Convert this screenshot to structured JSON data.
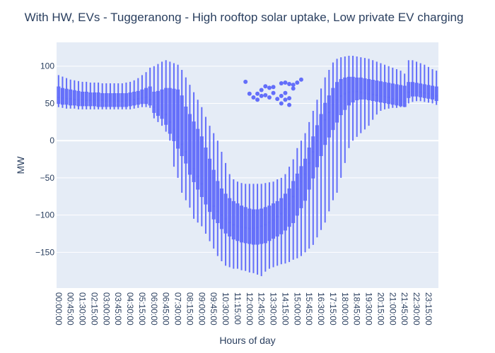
{
  "chart_data": {
    "type": "box",
    "title": "With HW, EVs - Tuggeranong - High rooftop solar uptake, Low private EV charging",
    "xlabel": "Hours of day",
    "ylabel": "MW",
    "ylim": [
      -198,
      132
    ],
    "yticks": [
      100,
      50,
      0,
      -50,
      -100,
      -150
    ],
    "ytick_labels": [
      "100",
      "50",
      "0",
      "−50",
      "−100",
      "−150"
    ],
    "xtick_labels": [
      "00:00:00",
      "00:45:00",
      "01:30:00",
      "02:15:00",
      "03:00:00",
      "03:45:00",
      "04:30:00",
      "05:15:00",
      "06:00:00",
      "06:45:00",
      "07:30:00",
      "08:15:00",
      "09:00:00",
      "09:45:00",
      "10:30:00",
      "11:15:00",
      "12:00:00",
      "12:45:00",
      "13:30:00",
      "14:15:00",
      "15:00:00",
      "15:45:00",
      "16:30:00",
      "17:15:00",
      "18:00:00",
      "18:45:00",
      "19:30:00",
      "20:15:00",
      "21:00:00",
      "21:45:00",
      "22:30:00",
      "23:15:00"
    ],
    "colors": {
      "box": "#636efa",
      "plot_bg": "#e5ecf6",
      "grid": "#ffffff"
    },
    "categories": [
      "00:00",
      "00:15",
      "00:30",
      "00:45",
      "01:00",
      "01:15",
      "01:30",
      "01:45",
      "02:00",
      "02:15",
      "02:30",
      "02:45",
      "03:00",
      "03:15",
      "03:30",
      "03:45",
      "04:00",
      "04:15",
      "04:30",
      "04:45",
      "05:00",
      "05:15",
      "05:30",
      "05:45",
      "06:00",
      "06:15",
      "06:30",
      "06:45",
      "07:00",
      "07:15",
      "07:30",
      "07:45",
      "08:00",
      "08:15",
      "08:30",
      "08:45",
      "09:00",
      "09:15",
      "09:30",
      "09:45",
      "10:00",
      "10:15",
      "10:30",
      "10:45",
      "11:00",
      "11:15",
      "11:30",
      "11:45",
      "12:00",
      "12:15",
      "12:30",
      "12:45",
      "13:00",
      "13:15",
      "13:30",
      "13:45",
      "14:00",
      "14:15",
      "14:30",
      "14:45",
      "15:00",
      "15:15",
      "15:30",
      "15:45",
      "16:00",
      "16:15",
      "16:30",
      "16:45",
      "17:00",
      "17:15",
      "17:30",
      "17:45",
      "18:00",
      "18:15",
      "18:30",
      "18:45",
      "19:00",
      "19:15",
      "19:30",
      "19:45",
      "20:00",
      "20:15",
      "20:30",
      "20:45",
      "21:00",
      "21:15",
      "21:30",
      "21:45",
      "22:00",
      "22:15",
      "22:30",
      "22:45",
      "23:00",
      "23:15",
      "23:30",
      "23:45"
    ],
    "box_stats": {
      "min": [
        45,
        44,
        43,
        43,
        43,
        42,
        42,
        42,
        42,
        42,
        42,
        42,
        42,
        42,
        42,
        42,
        42,
        42,
        42,
        43,
        44,
        45,
        45,
        44,
        30,
        25,
        20,
        12,
        0,
        -35,
        -50,
        -70,
        -80,
        -90,
        -105,
        -110,
        -115,
        -125,
        -135,
        -145,
        -155,
        -162,
        -168,
        -170,
        -172,
        -172,
        -174,
        -175,
        -177,
        -178,
        -180,
        -182,
        -176,
        -172,
        -170,
        -168,
        -166,
        -165,
        -163,
        -160,
        -158,
        -155,
        -150,
        -145,
        -140,
        -130,
        -120,
        -110,
        -95,
        -80,
        -70,
        -50,
        -30,
        -10,
        0,
        5,
        10,
        15,
        20,
        28,
        35,
        40,
        42,
        43,
        44,
        44,
        45,
        45,
        50,
        52,
        53,
        53,
        52,
        51,
        50,
        48
      ],
      "q1": [
        50,
        49,
        49,
        48,
        48,
        47,
        47,
        47,
        47,
        47,
        46,
        46,
        46,
        46,
        46,
        46,
        46,
        46,
        47,
        48,
        49,
        50,
        50,
        48,
        38,
        34,
        30,
        22,
        10,
        0,
        -10,
        -20,
        -30,
        -45,
        -55,
        -65,
        -75,
        -85,
        -95,
        -105,
        -110,
        -118,
        -124,
        -128,
        -132,
        -134,
        -136,
        -137,
        -138,
        -139,
        -139,
        -138,
        -137,
        -134,
        -131,
        -128,
        -125,
        -120,
        -115,
        -110,
        -100,
        -90,
        -80,
        -65,
        -50,
        -35,
        -20,
        -5,
        5,
        15,
        25,
        35,
        42,
        48,
        52,
        55,
        56,
        56,
        55,
        54,
        53,
        52,
        51,
        50,
        49,
        48,
        47,
        46,
        58,
        60,
        60,
        59,
        58,
        57,
        56,
        54
      ],
      "median": [
        58,
        57,
        56,
        56,
        55,
        55,
        55,
        54,
        54,
        54,
        54,
        54,
        53,
        53,
        53,
        53,
        53,
        54,
        54,
        55,
        56,
        57,
        58,
        55,
        45,
        42,
        40,
        35,
        25,
        15,
        5,
        -5,
        -15,
        -28,
        -38,
        -48,
        -58,
        -68,
        -78,
        -88,
        -95,
        -100,
        -105,
        -110,
        -113,
        -115,
        -116,
        -117,
        -118,
        -118,
        -117,
        -115,
        -113,
        -110,
        -106,
        -102,
        -98,
        -92,
        -85,
        -75,
        -65,
        -55,
        -45,
        -30,
        -15,
        0,
        15,
        28,
        38,
        48,
        55,
        60,
        63,
        65,
        66,
        66,
        65,
        64,
        63,
        62,
        61,
        60,
        59,
        58,
        56,
        55,
        54,
        53,
        65,
        66,
        66,
        65,
        64,
        63,
        62,
        60
      ],
      "q3": [
        72,
        70,
        69,
        68,
        67,
        66,
        65,
        65,
        64,
        64,
        64,
        63,
        63,
        63,
        63,
        63,
        63,
        63,
        64,
        65,
        66,
        68,
        70,
        72,
        65,
        66,
        68,
        70,
        70,
        69,
        68,
        60,
        45,
        35,
        25,
        15,
        5,
        -10,
        -25,
        -40,
        -55,
        -65,
        -72,
        -78,
        -82,
        -85,
        -88,
        -90,
        -92,
        -93,
        -93,
        -92,
        -90,
        -88,
        -85,
        -82,
        -78,
        -72,
        -65,
        -55,
        -45,
        -35,
        -25,
        -10,
        5,
        20,
        35,
        50,
        60,
        70,
        78,
        82,
        84,
        85,
        85,
        84,
        84,
        83,
        82,
        81,
        80,
        79,
        78,
        77,
        76,
        75,
        74,
        73,
        78,
        78,
        77,
        76,
        75,
        74,
        73,
        72
      ],
      "max": [
        88,
        86,
        84,
        82,
        81,
        80,
        79,
        79,
        78,
        78,
        78,
        77,
        77,
        77,
        77,
        77,
        77,
        78,
        79,
        81,
        84,
        88,
        92,
        98,
        100,
        103,
        106,
        108,
        106,
        104,
        102,
        95,
        85,
        75,
        65,
        55,
        45,
        32,
        20,
        10,
        0,
        -15,
        -30,
        -45,
        -52,
        -55,
        -57,
        -58,
        -58,
        -58,
        -58,
        -58,
        -57,
        -56,
        -55,
        -52,
        -50,
        -45,
        -35,
        -25,
        -10,
        0,
        10,
        25,
        40,
        55,
        70,
        85,
        95,
        105,
        110,
        112,
        113,
        114,
        114,
        113,
        112,
        111,
        110,
        108,
        106,
        104,
        102,
        100,
        98,
        96,
        94,
        90,
        108,
        108,
        106,
        104,
        102,
        99,
        96,
        94
      ]
    },
    "outliers": [
      [
        47,
        79
      ],
      [
        48,
        63
      ],
      [
        49,
        58
      ],
      [
        50,
        55
      ],
      [
        50,
        63
      ],
      [
        51,
        68
      ],
      [
        51,
        60
      ],
      [
        52,
        61
      ],
      [
        52,
        73
      ],
      [
        53,
        71
      ],
      [
        53,
        58
      ],
      [
        54,
        72
      ],
      [
        54,
        64
      ],
      [
        55,
        56
      ],
      [
        56,
        77
      ],
      [
        56,
        60
      ],
      [
        56,
        50
      ],
      [
        57,
        78
      ],
      [
        57,
        64
      ],
      [
        57,
        55
      ],
      [
        58,
        76
      ],
      [
        58,
        57
      ],
      [
        58,
        48
      ],
      [
        59,
        75
      ],
      [
        59,
        70
      ],
      [
        60,
        78
      ],
      [
        61,
        82
      ]
    ]
  }
}
